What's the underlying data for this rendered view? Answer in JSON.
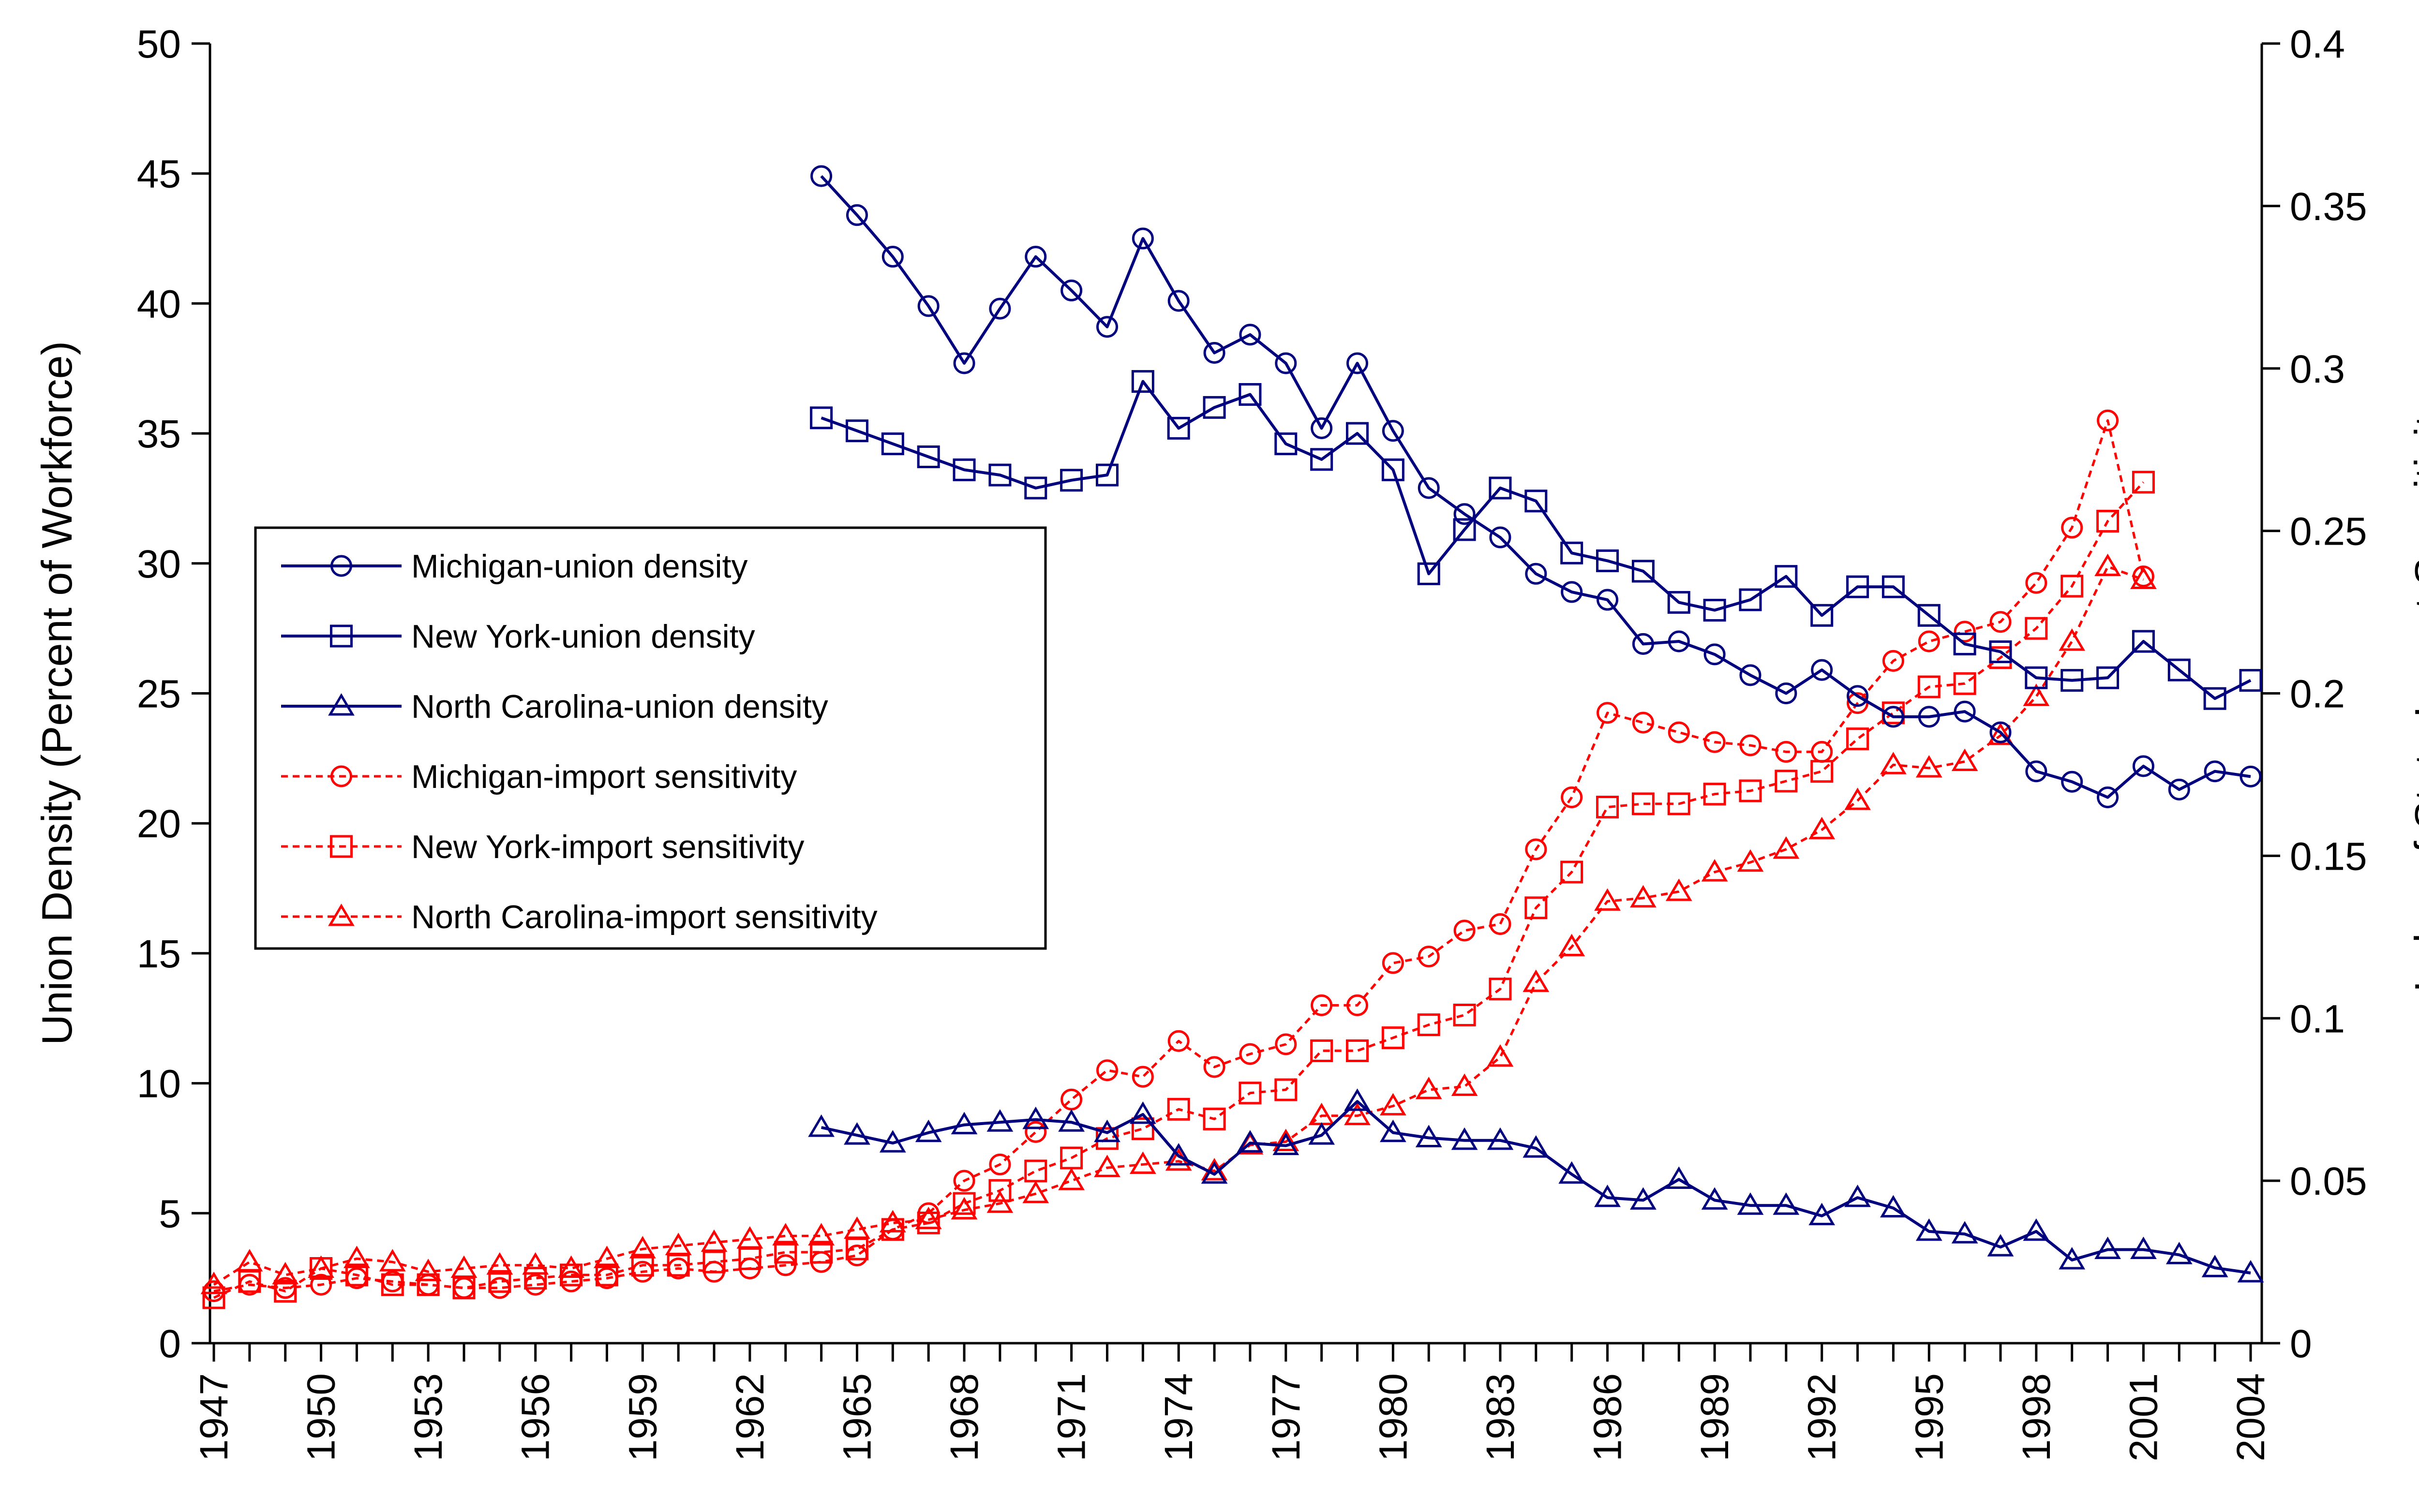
{
  "chart_data": {
    "type": "line",
    "title": "",
    "xlabel": "",
    "ylabel": "Union Density (Percent of Workforce)",
    "y2label": "Index of State Import Sensitivity",
    "xlim": [
      1947,
      2004
    ],
    "ylim": [
      0,
      50
    ],
    "y2lim": [
      0,
      0.4
    ],
    "xticks": [
      "1947",
      "1950",
      "1953",
      "1956",
      "1959",
      "1962",
      "1965",
      "1968",
      "1971",
      "1974",
      "1977",
      "1980",
      "1983",
      "1986",
      "1989",
      "1992",
      "1995",
      "1998",
      "2001",
      "2004"
    ],
    "yticks": [
      "0",
      "5",
      "10",
      "15",
      "20",
      "25",
      "30",
      "35",
      "40",
      "45",
      "50"
    ],
    "y2ticks": [
      "0",
      "0.05",
      "0.1",
      "0.15",
      "0.2",
      "0.25",
      "0.3",
      "0.35",
      "0.4"
    ],
    "grid": false,
    "legend_position": "left-middle",
    "series": [
      {
        "name": "Michigan-union density",
        "axis": "left",
        "color": "#00007f",
        "dashed": false,
        "marker": "circle",
        "x": [
          1964,
          1965,
          1966,
          1967,
          1968,
          1969,
          1970,
          1971,
          1972,
          1973,
          1974,
          1975,
          1976,
          1977,
          1978,
          1979,
          1980,
          1981,
          1982,
          1983,
          1984,
          1985,
          1986,
          1987,
          1988,
          1989,
          1990,
          1991,
          1992,
          1993,
          1994,
          1995,
          1996,
          1997,
          1998,
          1999,
          2000,
          2001,
          2002,
          2003,
          2004
        ],
        "values": [
          44.9,
          43.4,
          41.8,
          39.9,
          37.7,
          39.8,
          41.8,
          40.5,
          39.1,
          42.5,
          40.1,
          38.1,
          38.8,
          37.7,
          35.2,
          37.7,
          35.1,
          32.9,
          31.9,
          31.0,
          29.6,
          28.9,
          28.6,
          26.9,
          27.0,
          26.5,
          25.7,
          25.0,
          25.9,
          24.9,
          24.1,
          24.1,
          24.3,
          23.5,
          22.0,
          21.6,
          21.0,
          22.2,
          21.3,
          22.0,
          21.8
        ]
      },
      {
        "name": "New York-union density",
        "axis": "left",
        "color": "#00007f",
        "dashed": false,
        "marker": "square",
        "x": [
          1964,
          1965,
          1966,
          1967,
          1968,
          1969,
          1970,
          1971,
          1972,
          1973,
          1974,
          1975,
          1976,
          1977,
          1978,
          1979,
          1980,
          1981,
          1982,
          1983,
          1984,
          1985,
          1986,
          1987,
          1988,
          1989,
          1990,
          1991,
          1992,
          1993,
          1994,
          1995,
          1996,
          1997,
          1998,
          1999,
          2000,
          2001,
          2002,
          2003,
          2004
        ],
        "values": [
          35.6,
          35.1,
          34.6,
          34.1,
          33.6,
          33.4,
          32.9,
          33.2,
          33.4,
          37.0,
          35.2,
          36.0,
          36.5,
          34.6,
          34.0,
          35.0,
          33.6,
          29.6,
          31.3,
          32.9,
          32.4,
          30.4,
          30.1,
          29.7,
          28.5,
          28.2,
          28.6,
          29.5,
          28.0,
          29.1,
          29.1,
          28.0,
          26.9,
          26.6,
          25.6,
          25.5,
          25.6,
          27.0,
          25.9,
          24.8,
          25.5
        ]
      },
      {
        "name": "North Carolina-union density",
        "axis": "left",
        "color": "#00007f",
        "dashed": false,
        "marker": "triangle",
        "x": [
          1964,
          1965,
          1966,
          1967,
          1968,
          1969,
          1970,
          1971,
          1972,
          1973,
          1974,
          1975,
          1976,
          1977,
          1978,
          1979,
          1980,
          1981,
          1982,
          1983,
          1984,
          1985,
          1986,
          1987,
          1988,
          1989,
          1990,
          1991,
          1992,
          1993,
          1994,
          1995,
          1996,
          1997,
          1998,
          1999,
          2000,
          2001,
          2002,
          2003,
          2004
        ],
        "values": [
          8.3,
          8.0,
          7.7,
          8.1,
          8.4,
          8.5,
          8.6,
          8.5,
          8.1,
          8.8,
          7.2,
          6.5,
          7.7,
          7.6,
          8.0,
          9.3,
          8.1,
          7.9,
          7.8,
          7.8,
          7.5,
          6.5,
          5.6,
          5.5,
          6.3,
          5.5,
          5.3,
          5.3,
          4.9,
          5.6,
          5.2,
          4.3,
          4.2,
          3.7,
          4.3,
          3.2,
          3.6,
          3.6,
          3.4,
          2.9,
          2.7
        ]
      },
      {
        "name": "Michigan-import sensitivity",
        "axis": "right",
        "color": "#ff0000",
        "dashed": true,
        "marker": "circle",
        "x": [
          1947,
          1948,
          1949,
          1950,
          1951,
          1952,
          1953,
          1954,
          1955,
          1956,
          1957,
          1958,
          1959,
          1960,
          1961,
          1962,
          1963,
          1964,
          1965,
          1966,
          1967,
          1968,
          1969,
          1970,
          1971,
          1972,
          1973,
          1974,
          1975,
          1976,
          1977,
          1978,
          1979,
          1980,
          1981,
          1982,
          1983,
          1984,
          1985,
          1986,
          1987,
          1988,
          1989,
          1990,
          1991,
          1992,
          1993,
          1994,
          1995,
          1996,
          1997,
          1998,
          1999,
          2000,
          2001
        ],
        "values": [
          0.016,
          0.018,
          0.017,
          0.018,
          0.02,
          0.019,
          0.018,
          0.017,
          0.017,
          0.018,
          0.019,
          0.02,
          0.022,
          0.023,
          0.022,
          0.023,
          0.024,
          0.025,
          0.027,
          0.035,
          0.04,
          0.05,
          0.055,
          0.065,
          0.075,
          0.084,
          0.082,
          0.093,
          0.085,
          0.089,
          0.092,
          0.104,
          0.104,
          0.117,
          0.119,
          0.127,
          0.129,
          0.152,
          0.168,
          0.194,
          0.191,
          0.188,
          0.185,
          0.184,
          0.182,
          0.182,
          0.197,
          0.21,
          0.216,
          0.219,
          0.222,
          0.234,
          0.251,
          0.284,
          0.236
        ]
      },
      {
        "name": "New York-import sensitivity",
        "axis": "right",
        "color": "#ff0000",
        "dashed": true,
        "marker": "square",
        "x": [
          1947,
          1948,
          1949,
          1950,
          1951,
          1952,
          1953,
          1954,
          1955,
          1956,
          1957,
          1958,
          1959,
          1960,
          1961,
          1962,
          1963,
          1964,
          1965,
          1966,
          1967,
          1968,
          1969,
          1970,
          1971,
          1972,
          1973,
          1974,
          1975,
          1976,
          1977,
          1978,
          1979,
          1980,
          1981,
          1982,
          1983,
          1984,
          1985,
          1986,
          1987,
          1988,
          1989,
          1990,
          1991,
          1992,
          1993,
          1994,
          1995,
          1996,
          1997,
          1998,
          1999,
          2000,
          2001
        ],
        "values": [
          0.014,
          0.019,
          0.016,
          0.023,
          0.021,
          0.018,
          0.018,
          0.017,
          0.019,
          0.02,
          0.021,
          0.021,
          0.024,
          0.024,
          0.025,
          0.026,
          0.028,
          0.028,
          0.029,
          0.035,
          0.037,
          0.043,
          0.047,
          0.053,
          0.057,
          0.063,
          0.066,
          0.072,
          0.069,
          0.077,
          0.078,
          0.09,
          0.09,
          0.094,
          0.098,
          0.101,
          0.109,
          0.134,
          0.145,
          0.165,
          0.166,
          0.166,
          0.169,
          0.17,
          0.173,
          0.176,
          0.186,
          0.194,
          0.202,
          0.203,
          0.211,
          0.22,
          0.233,
          0.253,
          0.265
        ]
      },
      {
        "name": "North Carolina-import sensitivity",
        "axis": "right",
        "color": "#ff0000",
        "dashed": true,
        "marker": "triangle",
        "x": [
          1947,
          1948,
          1949,
          1950,
          1951,
          1952,
          1953,
          1954,
          1955,
          1956,
          1957,
          1958,
          1959,
          1960,
          1961,
          1962,
          1963,
          1964,
          1965,
          1966,
          1967,
          1968,
          1969,
          1970,
          1971,
          1972,
          1973,
          1974,
          1975,
          1976,
          1977,
          1978,
          1979,
          1980,
          1981,
          1982,
          1983,
          1984,
          1985,
          1986,
          1987,
          1988,
          1989,
          1990,
          1991,
          1992,
          1993,
          1994,
          1995,
          1996,
          1997,
          1998,
          1999,
          2000,
          2001
        ],
        "values": [
          0.018,
          0.025,
          0.021,
          0.023,
          0.026,
          0.025,
          0.022,
          0.023,
          0.024,
          0.024,
          0.023,
          0.026,
          0.029,
          0.03,
          0.031,
          0.032,
          0.033,
          0.033,
          0.035,
          0.037,
          0.038,
          0.041,
          0.043,
          0.046,
          0.05,
          0.054,
          0.055,
          0.056,
          0.053,
          0.061,
          0.062,
          0.07,
          0.07,
          0.073,
          0.078,
          0.079,
          0.088,
          0.111,
          0.122,
          0.136,
          0.137,
          0.139,
          0.145,
          0.148,
          0.152,
          0.158,
          0.167,
          0.178,
          0.177,
          0.179,
          0.187,
          0.199,
          0.216,
          0.239,
          0.235
        ]
      }
    ]
  }
}
